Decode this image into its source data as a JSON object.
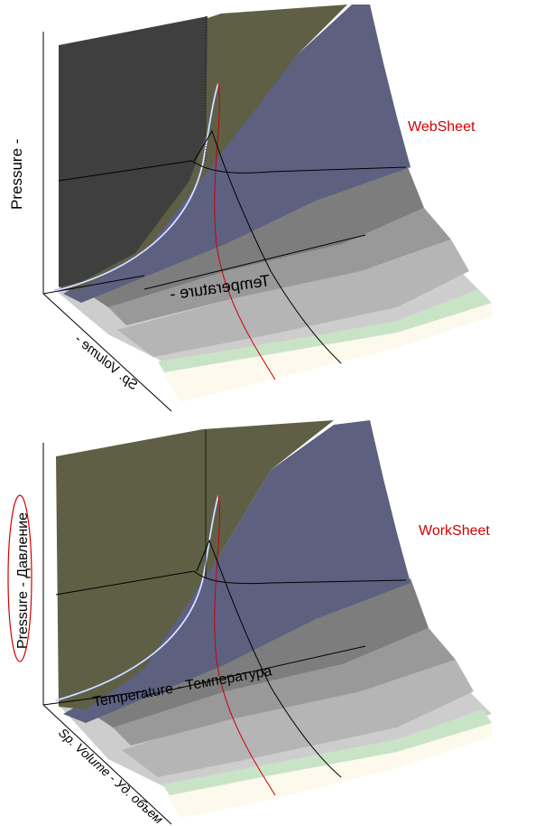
{
  "panels": [
    {
      "id": "websheet",
      "title": "WebSheet",
      "title_color": "#d40000",
      "pressure_label": "Pressure -",
      "temperature_label": "Temperature -",
      "volume_label": "Sp. Volume -"
    },
    {
      "id": "worksheet",
      "title": "WorkSheet",
      "title_color": "#d40000",
      "pressure_label": "Pressure - Давление",
      "temperature_label": "Temperature - Температура",
      "volume_label": "Sp. Volume - Уд. объем"
    }
  ],
  "colors": {
    "dark_region": "#3f3f3f",
    "olive_region": "#5f5f45",
    "blue_region": "#5e6080",
    "grey_1": "#7d7d7d",
    "grey_2": "#999999",
    "grey_3": "#b5b5b5",
    "grey_4": "#cdcdcd",
    "green_band": "#c9e3c7",
    "cream_band": "#fdf9ec",
    "dome_blue": "#9fb0ff",
    "red_line": "#c80000",
    "highlight_ellipse": "#d40000"
  }
}
